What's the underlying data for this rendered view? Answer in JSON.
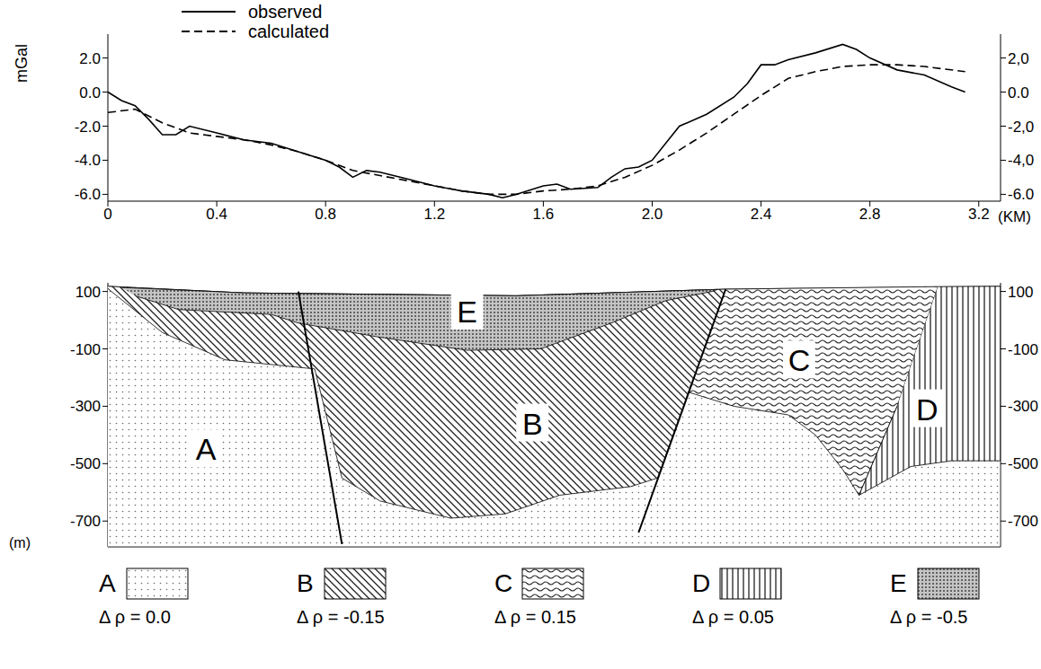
{
  "chart_data": [
    {
      "type": "line",
      "y_label": "mGal",
      "x_label": "(KM)",
      "legend": "upper left",
      "xlim": [
        0,
        3.28
      ],
      "xticks": [
        0,
        0.4,
        0.8,
        1.2,
        1.6,
        {
          "value": 2,
          "label": "2.0"
        },
        2.4,
        2.8,
        3.2
      ],
      "ylim": [
        -6.4,
        3.4
      ],
      "yticks": [
        {
          "value": 2,
          "label": "2.0"
        },
        {
          "value": 0,
          "label": "0.0"
        },
        {
          "value": -2,
          "label": "-2.0"
        },
        {
          "value": -4,
          "label": "-4.0"
        },
        {
          "value": -6,
          "label": "-6.0"
        }
      ],
      "y2lim": [
        -6.4,
        3.4
      ],
      "y2ticks": [
        {
          "value": 2,
          "label": "2,0"
        },
        {
          "value": 0,
          "label": "0.0"
        },
        {
          "value": -2,
          "label": "-2,0"
        },
        {
          "value": -4,
          "label": "-4,0"
        },
        {
          "value": -6,
          "label": "-6.0"
        }
      ],
      "series": [
        {
          "name": "observed",
          "color": "#000000",
          "line_style": "solid",
          "x": [
            0,
            0.05,
            0.1,
            0.15,
            0.2,
            0.25,
            0.3,
            0.4,
            0.5,
            0.6,
            0.7,
            0.8,
            0.85,
            0.9,
            0.95,
            1.0,
            1.1,
            1.2,
            1.3,
            1.4,
            1.45,
            1.5,
            1.6,
            1.65,
            1.7,
            1.8,
            1.85,
            1.9,
            1.95,
            2.0,
            2.1,
            2.2,
            2.3,
            2.35,
            2.4,
            2.45,
            2.5,
            2.6,
            2.7,
            2.75,
            2.8,
            2.9,
            3.0,
            3.1,
            3.15
          ],
          "values": [
            0.0,
            -0.5,
            -0.8,
            -1.6,
            -2.5,
            -2.5,
            -2.0,
            -2.4,
            -2.8,
            -3.0,
            -3.5,
            -4.0,
            -4.4,
            -5.0,
            -4.6,
            -4.7,
            -5.1,
            -5.5,
            -5.8,
            -6.0,
            -6.2,
            -6.0,
            -5.5,
            -5.4,
            -5.7,
            -5.6,
            -5.0,
            -4.5,
            -4.4,
            -4.0,
            -2.0,
            -1.3,
            -0.3,
            0.5,
            1.6,
            1.6,
            1.9,
            2.3,
            2.8,
            2.5,
            2.0,
            1.3,
            1.0,
            0.3,
            0.0
          ]
        },
        {
          "name": "calculated",
          "color": "#000000",
          "line_style": "dashed",
          "x": [
            0,
            0.1,
            0.2,
            0.3,
            0.4,
            0.5,
            0.6,
            0.7,
            0.8,
            0.9,
            1.0,
            1.1,
            1.2,
            1.3,
            1.4,
            1.5,
            1.6,
            1.7,
            1.8,
            1.9,
            2.0,
            2.1,
            2.2,
            2.3,
            2.4,
            2.5,
            2.6,
            2.7,
            2.8,
            2.9,
            3.0,
            3.15
          ],
          "values": [
            -1.2,
            -1.0,
            -1.8,
            -2.4,
            -2.6,
            -2.8,
            -3.1,
            -3.5,
            -4.0,
            -4.6,
            -4.9,
            -5.2,
            -5.5,
            -5.8,
            -6.0,
            -6.0,
            -5.8,
            -5.7,
            -5.5,
            -5.0,
            -4.3,
            -3.4,
            -2.4,
            -1.3,
            -0.2,
            0.8,
            1.2,
            1.5,
            1.6,
            1.6,
            1.5,
            1.2
          ]
        }
      ]
    },
    {
      "type": "section",
      "y_label": "(m)",
      "legend": "bottom",
      "tick_labels": "y",
      "xlim": [
        0,
        3.28
      ],
      "ylim": [
        -790,
        130
      ],
      "yticks": [
        100,
        -100,
        -300,
        -500,
        -700
      ],
      "y2lim": [
        -790,
        130
      ],
      "y2ticks": [
        100,
        -100,
        -300,
        -500,
        -700
      ],
      "series": [
        {
          "name": "A",
          "color": "#666666",
          "density": {
            "value": 0.0,
            "label": "Δ ρ = 0.0"
          },
          "label_x": 0.36,
          "label_y": -450,
          "x": [
            0,
            0.5,
            1.5,
            2.27,
            3.28,
            3.28,
            0
          ],
          "y": [
            118,
            95,
            85,
            108,
            118,
            -790,
            -790
          ]
        },
        {
          "name": "B",
          "color": "#222222",
          "density": {
            "value": -0.15,
            "label": "Δ ρ = -0.15"
          },
          "label_x": 1.56,
          "label_y": -360,
          "x": [
            0,
            0.5,
            1.5,
            2.27,
            2.02,
            1.92,
            1.66,
            1.46,
            1.26,
            1.0,
            0.86,
            0.76,
            0.43,
            0.2,
            0
          ],
          "y": [
            118,
            95,
            85,
            108,
            -550,
            -580,
            -610,
            -675,
            -690,
            -630,
            -550,
            -170,
            -138,
            -43,
            110
          ]
        },
        {
          "name": "C",
          "color": "#222222",
          "density": {
            "value": 0.15,
            "label": "Δ ρ = 0.15"
          },
          "label_x": 2.54,
          "label_y": -140,
          "x": [
            2.27,
            3.05,
            2.9,
            2.76,
            2.7,
            2.6,
            2.5,
            2.3,
            2.13
          ],
          "y": [
            108,
            117,
            -300,
            -610,
            -520,
            -400,
            -330,
            -300,
            -250
          ]
        },
        {
          "name": "D",
          "color": "#222222",
          "density": {
            "value": 0.05,
            "label": "Δ ρ = 0.05"
          },
          "label_x": 3.01,
          "label_y": -310,
          "x": [
            3.05,
            3.28,
            3.28,
            3.1,
            2.95,
            2.76,
            2.9
          ],
          "y": [
            117,
            118,
            -490,
            -490,
            -510,
            -610,
            -300
          ]
        },
        {
          "name": "E",
          "color": "#333333",
          "density": {
            "value": -0.5,
            "label": "Δ ρ = -0.5"
          },
          "label_x": 1.32,
          "label_y": 30,
          "x": [
            0.05,
            0.5,
            1.5,
            2.24,
            2.22,
            2.05,
            1.85,
            1.59,
            1.32,
            0.99,
            0.7,
            0.6,
            0.26,
            0.1
          ],
          "y": [
            114,
            95,
            85,
            107,
            100,
            68,
            -10,
            -100,
            -105,
            -58,
            -10,
            20,
            37,
            85
          ]
        }
      ],
      "faults": [
        {
          "x": [
            0.7,
            0.86
          ],
          "y": [
            100,
            -780
          ]
        },
        {
          "x": [
            2.27,
            1.95
          ],
          "y": [
            108,
            -740
          ]
        }
      ]
    }
  ]
}
